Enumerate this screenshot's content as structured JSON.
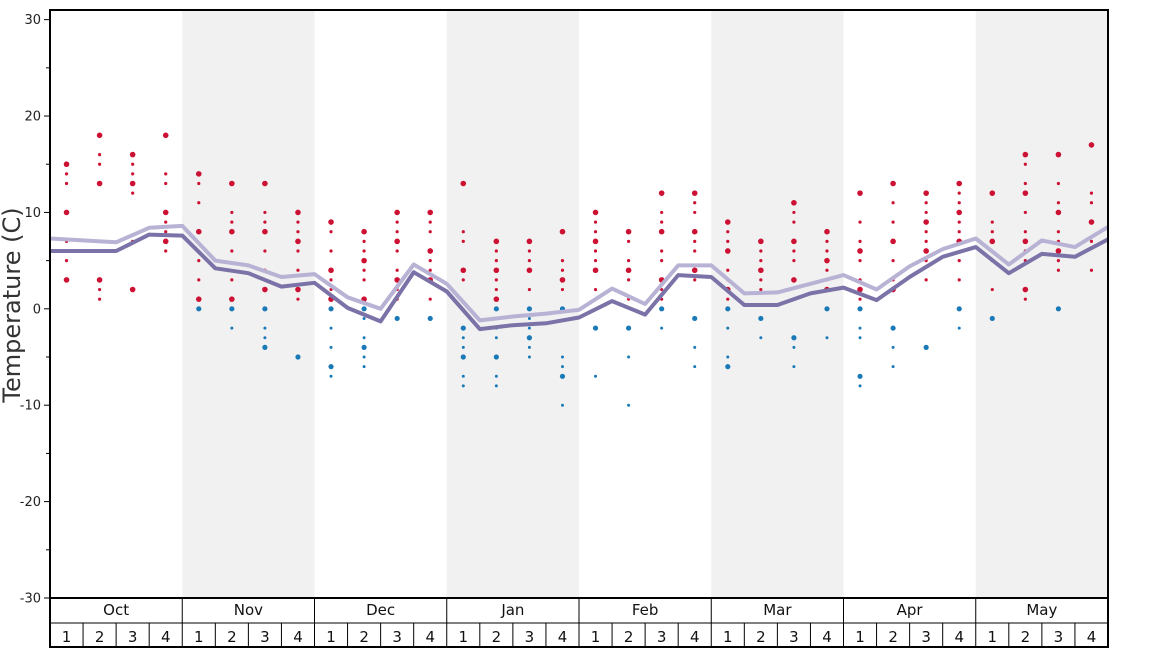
{
  "chart_data": {
    "type": "line",
    "ylabel": "Temperature (C)",
    "ylim": [
      -30,
      31
    ],
    "yticks": [
      30,
      20,
      10,
      0,
      -10,
      -20,
      -30
    ],
    "months": [
      "Oct",
      "Nov",
      "Dec",
      "Jan",
      "Feb",
      "Mar",
      "Apr",
      "May"
    ],
    "weeks": [
      "1",
      "2",
      "3",
      "4"
    ],
    "shaded_months": [
      "Nov",
      "Jan",
      "Mar",
      "May"
    ],
    "series": [
      {
        "color": "#b8b2d4",
        "values": [
          7.3,
          7.1,
          6.9,
          8.4,
          8.6,
          5.0,
          4.5,
          3.3,
          3.6,
          1.2,
          0.0,
          4.6,
          2.6,
          -1.2,
          -0.8,
          -0.5,
          -0.1,
          2.1,
          0.5,
          4.5,
          4.5,
          1.6,
          1.7,
          2.6,
          3.5,
          2.0,
          4.4,
          6.2,
          7.3,
          4.6,
          7.1,
          6.4,
          8.5
        ]
      },
      {
        "color": "#7b72a8",
        "values": [
          6.0,
          6.0,
          6.0,
          7.7,
          7.6,
          4.2,
          3.7,
          2.3,
          2.7,
          0.1,
          -1.3,
          3.8,
          1.8,
          -2.1,
          -1.7,
          -1.5,
          -0.9,
          0.8,
          -0.6,
          3.5,
          3.3,
          0.4,
          0.4,
          1.6,
          2.2,
          0.9,
          3.3,
          5.4,
          6.4,
          3.7,
          5.7,
          5.4,
          7.2
        ]
      }
    ],
    "scatter": [
      {
        "week": 0,
        "warm": [
          15,
          14,
          13,
          10,
          7,
          5,
          3
        ],
        "cold": []
      },
      {
        "week": 1,
        "warm": [
          18,
          16,
          15,
          13,
          7,
          6,
          3,
          2,
          1
        ],
        "cold": []
      },
      {
        "week": 2,
        "warm": [
          16,
          15,
          14,
          13,
          12,
          7,
          2
        ],
        "cold": []
      },
      {
        "week": 3,
        "warm": [
          18,
          14,
          13,
          10,
          9,
          8,
          7,
          6
        ],
        "cold": []
      },
      {
        "week": 4,
        "warm": [
          14,
          13,
          11,
          8,
          5,
          3,
          1
        ],
        "cold": [
          0
        ]
      },
      {
        "week": 5,
        "warm": [
          13,
          10,
          9,
          8,
          6,
          3,
          1
        ],
        "cold": [
          0,
          -2
        ]
      },
      {
        "week": 6,
        "warm": [
          13,
          10,
          9,
          8,
          6,
          4,
          2
        ],
        "cold": [
          0,
          -2,
          -3,
          -4
        ]
      },
      {
        "week": 7,
        "warm": [
          10,
          9,
          8,
          7,
          6,
          4,
          2,
          1
        ],
        "cold": [
          -5
        ]
      },
      {
        "week": 8,
        "warm": [
          9,
          8,
          6,
          4,
          3,
          2,
          1
        ],
        "cold": [
          0,
          -2,
          -4,
          -6,
          -7
        ]
      },
      {
        "week": 9,
        "warm": [
          8,
          7,
          6,
          5,
          4,
          3,
          1
        ],
        "cold": [
          0,
          -1,
          -3,
          -4,
          -5,
          -6
        ]
      },
      {
        "week": 10,
        "warm": [
          10,
          9,
          8,
          7,
          6,
          4,
          3,
          2,
          1
        ],
        "cold": [
          -1
        ]
      },
      {
        "week": 11,
        "warm": [
          10,
          9,
          8,
          6,
          5,
          4,
          3,
          1
        ],
        "cold": [
          -1
        ]
      },
      {
        "week": 12,
        "warm": [
          13,
          8,
          7,
          4,
          3
        ],
        "cold": [
          -2,
          -3,
          -4,
          -5,
          -7,
          -8
        ]
      },
      {
        "week": 13,
        "warm": [
          7,
          6,
          5,
          4,
          3,
          2,
          1
        ],
        "cold": [
          0,
          -2,
          -3,
          -5,
          -7,
          -8
        ]
      },
      {
        "week": 14,
        "warm": [
          7,
          6,
          5,
          4,
          2
        ],
        "cold": [
          0,
          -1,
          -2,
          -3,
          -4,
          -5
        ]
      },
      {
        "week": 15,
        "warm": [
          8,
          5,
          4,
          3,
          2
        ],
        "cold": [
          0,
          -5,
          -6,
          -7,
          -10
        ]
      },
      {
        "week": 16,
        "warm": [
          10,
          9,
          8,
          7,
          6,
          5,
          4,
          2,
          1
        ],
        "cold": [
          -2,
          -7
        ]
      },
      {
        "week": 17,
        "warm": [
          8,
          7,
          5,
          4,
          3,
          1
        ],
        "cold": [
          -2,
          -5,
          -10
        ]
      },
      {
        "week": 18,
        "warm": [
          12,
          10,
          9,
          8,
          6,
          5,
          3,
          2,
          1
        ],
        "cold": [
          0,
          -2
        ]
      },
      {
        "week": 19,
        "warm": [
          12,
          11,
          10,
          8,
          7,
          6,
          4,
          3
        ],
        "cold": [
          -1,
          -4,
          -6
        ]
      },
      {
        "week": 20,
        "warm": [
          9,
          8,
          7,
          6,
          4,
          3,
          2,
          1
        ],
        "cold": [
          0,
          -2,
          -5,
          -6
        ]
      },
      {
        "week": 21,
        "warm": [
          7,
          6,
          5,
          4,
          3,
          2
        ],
        "cold": [
          -1,
          -3
        ]
      },
      {
        "week": 22,
        "warm": [
          11,
          10,
          9,
          7,
          6,
          5,
          3
        ],
        "cold": [
          -3,
          -4,
          -6
        ]
      },
      {
        "week": 23,
        "warm": [
          8,
          7,
          6,
          5,
          4,
          3,
          2
        ],
        "cold": [
          0,
          -3
        ]
      },
      {
        "week": 24,
        "warm": [
          12,
          9,
          7,
          6,
          5,
          3,
          2,
          1
        ],
        "cold": [
          0,
          -2,
          -3,
          -7,
          -8
        ]
      },
      {
        "week": 25,
        "warm": [
          13,
          11,
          9,
          7,
          5,
          3,
          2
        ],
        "cold": [
          -2,
          -4,
          -6
        ]
      },
      {
        "week": 26,
        "warm": [
          12,
          11,
          10,
          9,
          8,
          7,
          6,
          5,
          3
        ],
        "cold": [
          -4
        ]
      },
      {
        "week": 27,
        "warm": [
          13,
          12,
          11,
          10,
          9,
          8,
          7,
          5,
          3
        ],
        "cold": [
          0,
          -2
        ]
      },
      {
        "week": 28,
        "warm": [
          12,
          9,
          8,
          7,
          5,
          2
        ],
        "cold": [
          -1
        ]
      },
      {
        "week": 29,
        "warm": [
          16,
          15,
          13,
          12,
          10,
          8,
          7,
          6,
          5,
          2,
          1
        ],
        "cold": []
      },
      {
        "week": 30,
        "warm": [
          16,
          13,
          11,
          10,
          8,
          7,
          6,
          5,
          4
        ],
        "cold": [
          0
        ]
      },
      {
        "week": 31,
        "warm": [
          17,
          12,
          11,
          9,
          7,
          4
        ],
        "cold": []
      }
    ],
    "warm_color": "#cc1133",
    "cold_color": "#1a7ab8"
  }
}
